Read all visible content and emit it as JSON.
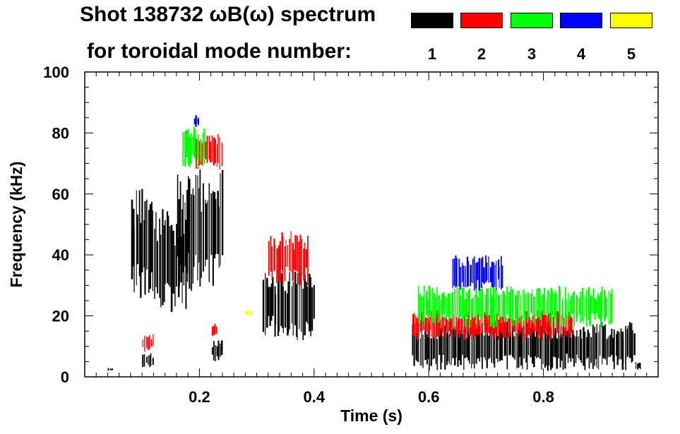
{
  "title_line1": "Shot 138732 ωB(ω) spectrum",
  "title_line2": "for toroidal mode number:",
  "legend": [
    {
      "mode": "1",
      "color": "#000000"
    },
    {
      "mode": "2",
      "color": "#ff0000"
    },
    {
      "mode": "3",
      "color": "#00ff00"
    },
    {
      "mode": "4",
      "color": "#0000ff"
    },
    {
      "mode": "5",
      "color": "#ffff00"
    }
  ],
  "chart_data": {
    "type": "heatmap",
    "title": "Shot 138732 ωB(ω) spectrum",
    "xlabel": "Time (s)",
    "ylabel": "Frequency (kHz)",
    "xlim": [
      0.0,
      1.0
    ],
    "ylim": [
      0,
      100
    ],
    "xticks": [
      0.2,
      0.4,
      0.6,
      0.8
    ],
    "yticks": [
      0,
      20,
      40,
      60,
      80,
      100
    ],
    "colorscale_legend": "toroidal mode number n = 1..5",
    "series": [
      {
        "name": "n=1",
        "color": "#000000",
        "regions": [
          {
            "t": [
              0.08,
              0.12
            ],
            "f": [
              25,
              62
            ]
          },
          {
            "t": [
              0.12,
              0.18
            ],
            "f": [
              20,
              55
            ]
          },
          {
            "t": [
              0.16,
              0.24
            ],
            "f": [
              28,
              68
            ]
          },
          {
            "t": [
              0.1,
              0.12
            ],
            "f": [
              3,
              8
            ]
          },
          {
            "t": [
              0.22,
              0.24
            ],
            "f": [
              5,
              12
            ]
          },
          {
            "t": [
              0.31,
              0.4
            ],
            "f": [
              12,
              35
            ]
          },
          {
            "t": [
              0.57,
              0.96
            ],
            "f": [
              2,
              18
            ]
          },
          {
            "t": [
              0.04,
              0.05
            ],
            "f": [
              2,
              3
            ]
          },
          {
            "t": [
              0.96,
              0.97
            ],
            "f": [
              2,
              5
            ]
          }
        ]
      },
      {
        "name": "n=2",
        "color": "#ff0000",
        "regions": [
          {
            "t": [
              0.19,
              0.24
            ],
            "f": [
              68,
              80
            ]
          },
          {
            "t": [
              0.32,
              0.39
            ],
            "f": [
              30,
              48
            ]
          },
          {
            "t": [
              0.57,
              0.85
            ],
            "f": [
              12,
              22
            ]
          },
          {
            "t": [
              0.1,
              0.12
            ],
            "f": [
              8,
              14
            ]
          },
          {
            "t": [
              0.22,
              0.23
            ],
            "f": [
              13,
              18
            ]
          }
        ]
      },
      {
        "name": "n=3",
        "color": "#00ff00",
        "regions": [
          {
            "t": [
              0.17,
              0.21
            ],
            "f": [
              68,
              82
            ]
          },
          {
            "t": [
              0.58,
              0.92
            ],
            "f": [
              16,
              30
            ]
          }
        ]
      },
      {
        "name": "n=4",
        "color": "#0000ff",
        "regions": [
          {
            "t": [
              0.19,
              0.2
            ],
            "f": [
              82,
              86
            ]
          },
          {
            "t": [
              0.64,
              0.73
            ],
            "f": [
              28,
              40
            ]
          }
        ]
      },
      {
        "name": "n=5",
        "color": "#ffff00",
        "regions": [
          {
            "t": [
              0.28,
              0.29
            ],
            "f": [
              20,
              22
            ]
          }
        ]
      }
    ]
  }
}
